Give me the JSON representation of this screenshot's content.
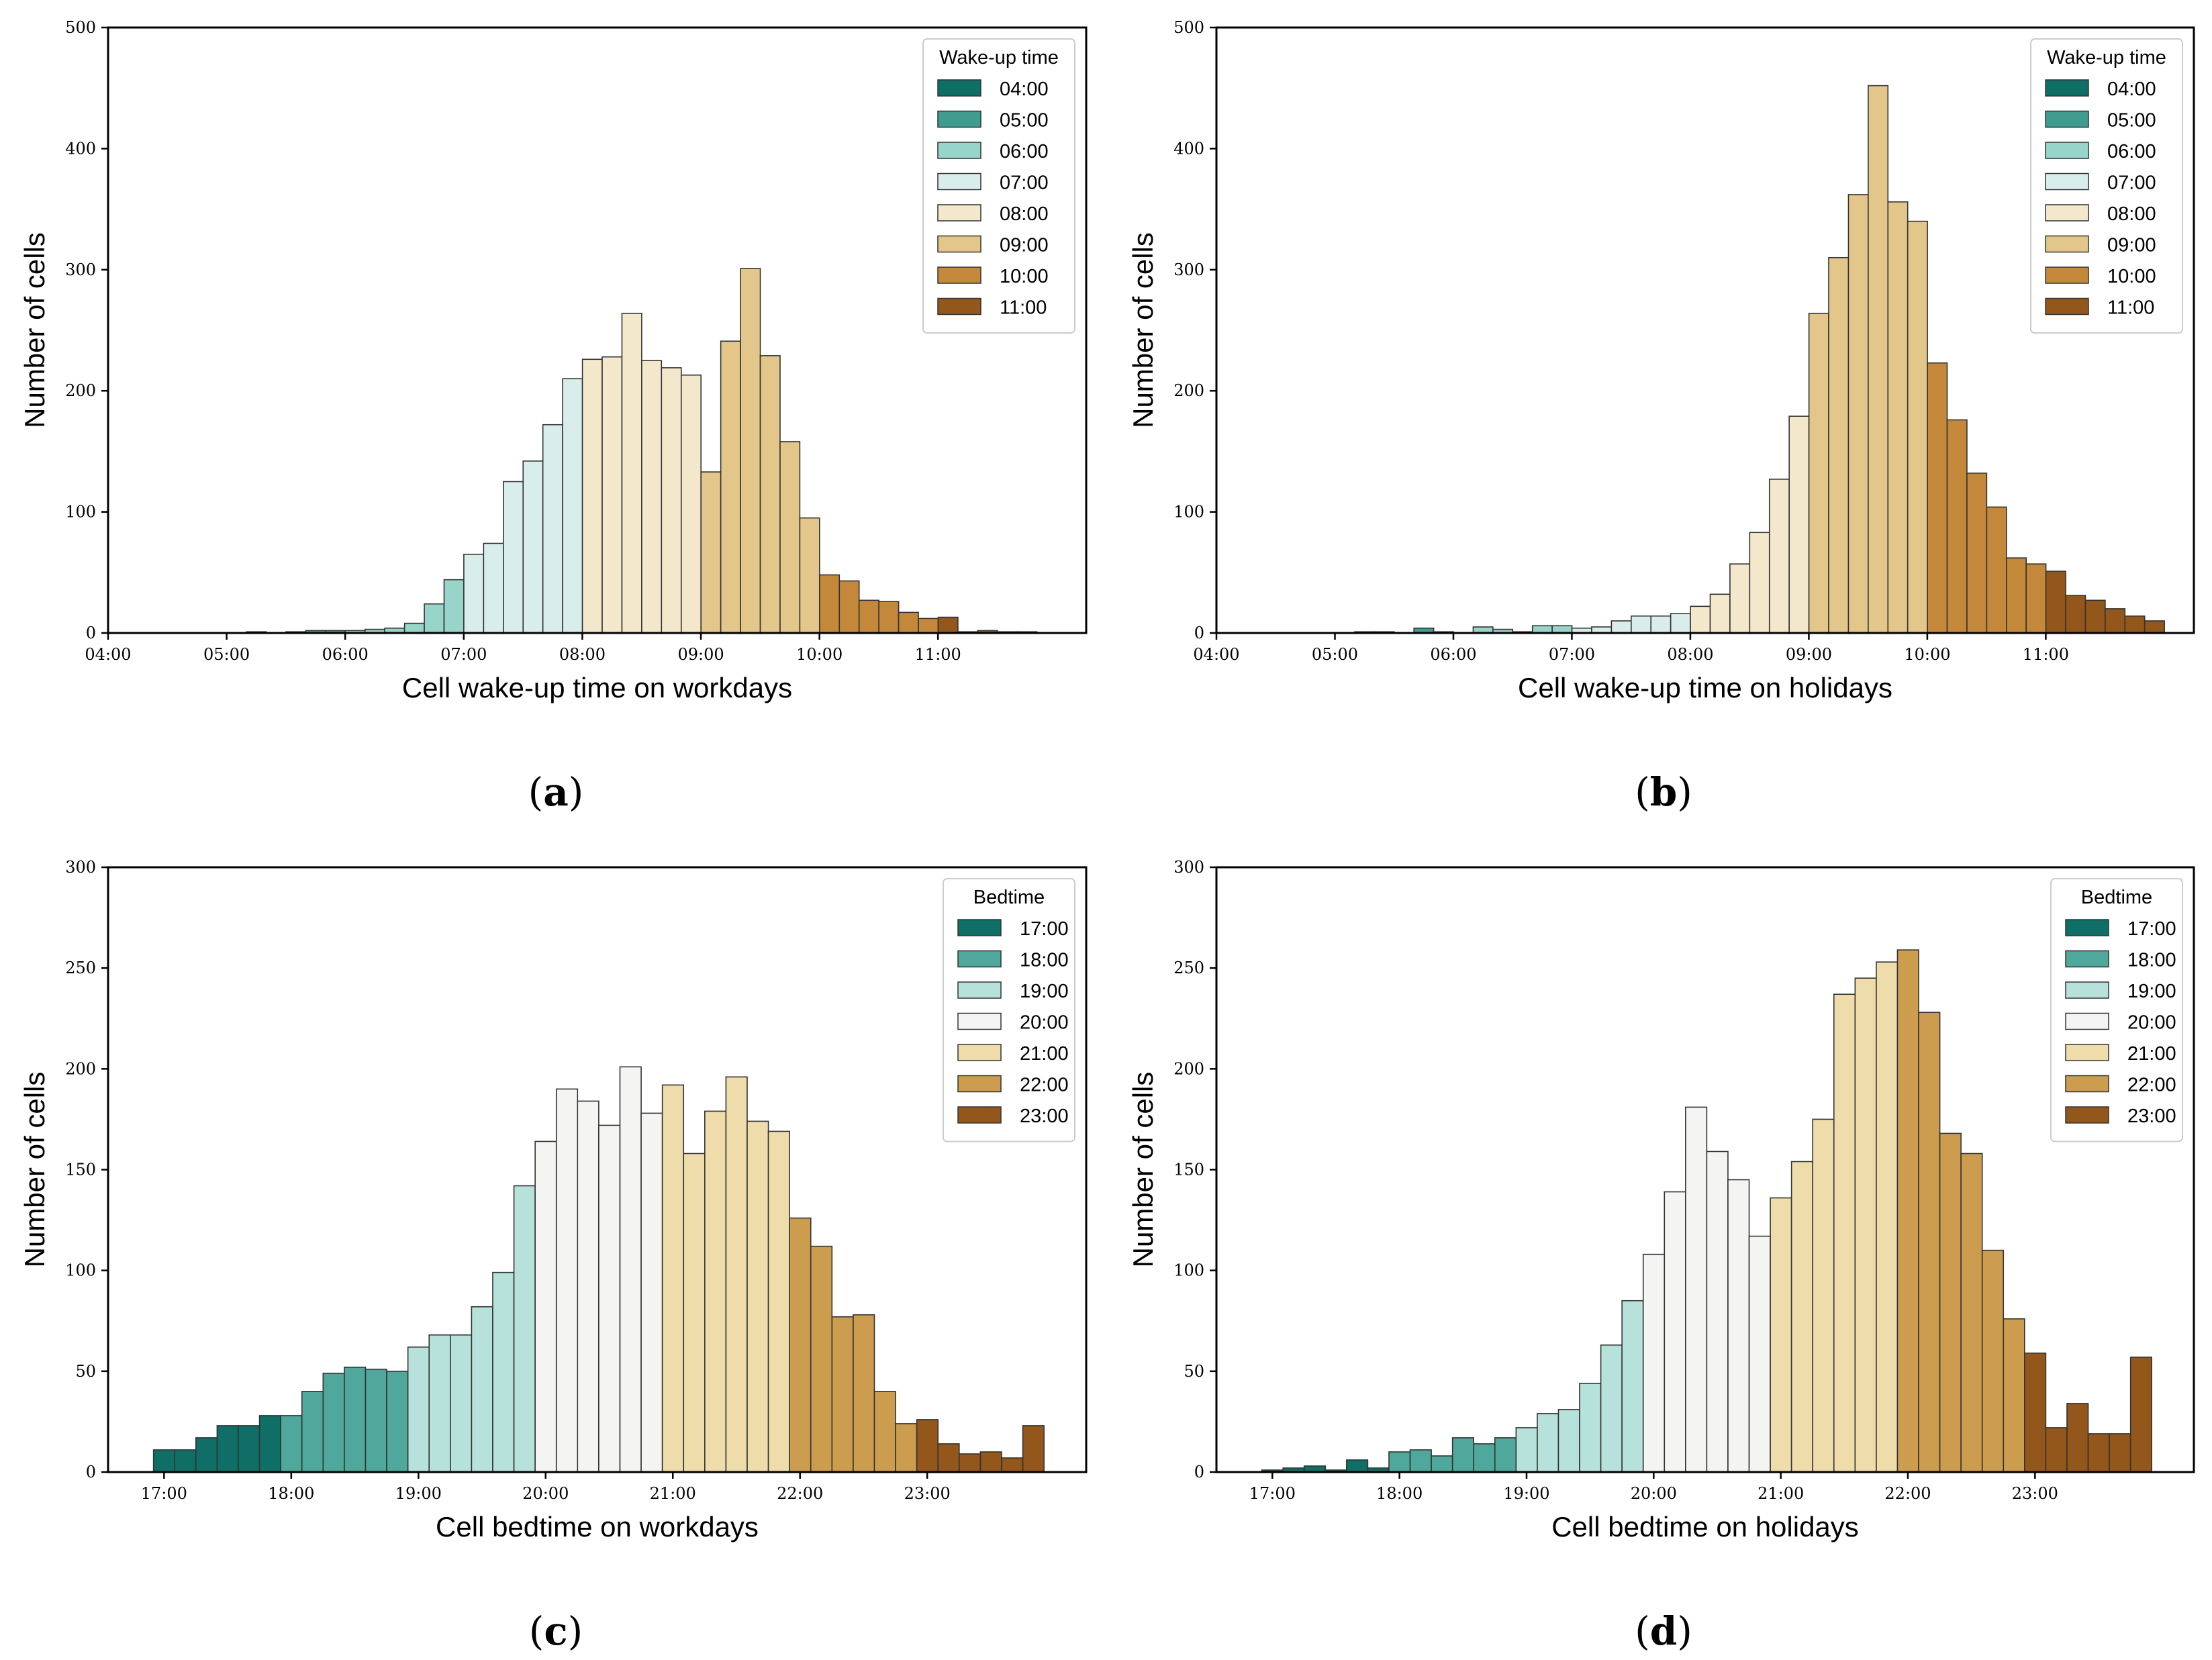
{
  "ylabel": "Number of cells",
  "chart_data": [
    {
      "type": "bar",
      "panel": "a",
      "caption": "a",
      "xlabel": "Cell wake-up time on workdays",
      "ylabel": "Number of cells",
      "ylim": [
        0,
        500
      ],
      "yticks": [
        0,
        100,
        200,
        300,
        400,
        500
      ],
      "xlim": [
        4.0,
        12.25
      ],
      "xticks": [
        4,
        5,
        6,
        7,
        8,
        9,
        10,
        11
      ],
      "xtick_labels": [
        "04:00",
        "05:00",
        "06:00",
        "07:00",
        "08:00",
        "09:00",
        "10:00",
        "11:00"
      ],
      "bin_start": 4.0,
      "bin_width": 0.1667,
      "legend_title": "Wake-up time",
      "legend_position": "top-right",
      "groups": [
        {
          "label": "04:00",
          "color": "#0f6e65"
        },
        {
          "label": "05:00",
          "color": "#3f9c8f"
        },
        {
          "label": "06:00",
          "color": "#97d4c9"
        },
        {
          "label": "07:00",
          "color": "#d9eeeb"
        },
        {
          "label": "08:00",
          "color": "#f4e8cc"
        },
        {
          "label": "09:00",
          "color": "#e2c68a"
        },
        {
          "label": "10:00",
          "color": "#c4883a"
        },
        {
          "label": "11:00",
          "color": "#93561b"
        }
      ],
      "bars": [
        {
          "v": 0,
          "g": 0
        },
        {
          "v": 0,
          "g": 0
        },
        {
          "v": 0,
          "g": 0
        },
        {
          "v": 0,
          "g": 0
        },
        {
          "v": 0,
          "g": 0
        },
        {
          "v": 0,
          "g": 0
        },
        {
          "v": 0,
          "g": 1
        },
        {
          "v": 1,
          "g": 1
        },
        {
          "v": 0,
          "g": 1
        },
        {
          "v": 1,
          "g": 1
        },
        {
          "v": 2,
          "g": 1
        },
        {
          "v": 2,
          "g": 1
        },
        {
          "v": 2,
          "g": 2
        },
        {
          "v": 3,
          "g": 2
        },
        {
          "v": 4,
          "g": 2
        },
        {
          "v": 8,
          "g": 2
        },
        {
          "v": 24,
          "g": 2
        },
        {
          "v": 44,
          "g": 2
        },
        {
          "v": 65,
          "g": 3
        },
        {
          "v": 74,
          "g": 3
        },
        {
          "v": 125,
          "g": 3
        },
        {
          "v": 142,
          "g": 3
        },
        {
          "v": 172,
          "g": 3
        },
        {
          "v": 210,
          "g": 3
        },
        {
          "v": 226,
          "g": 4
        },
        {
          "v": 228,
          "g": 4
        },
        {
          "v": 264,
          "g": 4
        },
        {
          "v": 225,
          "g": 4
        },
        {
          "v": 219,
          "g": 4
        },
        {
          "v": 213,
          "g": 4
        },
        {
          "v": 133,
          "g": 5
        },
        {
          "v": 241,
          "g": 5
        },
        {
          "v": 301,
          "g": 5
        },
        {
          "v": 229,
          "g": 5
        },
        {
          "v": 158,
          "g": 5
        },
        {
          "v": 95,
          "g": 5
        },
        {
          "v": 48,
          "g": 6
        },
        {
          "v": 43,
          "g": 6
        },
        {
          "v": 27,
          "g": 6
        },
        {
          "v": 26,
          "g": 6
        },
        {
          "v": 17,
          "g": 6
        },
        {
          "v": 12,
          "g": 6
        },
        {
          "v": 13,
          "g": 7
        },
        {
          "v": 1,
          "g": 7
        },
        {
          "v": 2,
          "g": 7
        },
        {
          "v": 1,
          "g": 7
        },
        {
          "v": 1,
          "g": 7
        },
        {
          "v": 0,
          "g": 7
        }
      ]
    },
    {
      "type": "bar",
      "panel": "b",
      "caption": "b",
      "xlabel": "Cell wake-up time on holidays",
      "ylabel": "Number of cells",
      "ylim": [
        0,
        500
      ],
      "yticks": [
        0,
        100,
        200,
        300,
        400,
        500
      ],
      "xlim": [
        4.0,
        12.25
      ],
      "xticks": [
        4,
        5,
        6,
        7,
        8,
        9,
        10,
        11
      ],
      "xtick_labels": [
        "04:00",
        "05:00",
        "06:00",
        "07:00",
        "08:00",
        "09:00",
        "10:00",
        "11:00"
      ],
      "bin_start": 4.0,
      "bin_width": 0.1667,
      "legend_title": "Wake-up time",
      "legend_position": "top-right",
      "groups": [
        {
          "label": "04:00",
          "color": "#0f6e65"
        },
        {
          "label": "05:00",
          "color": "#3f9c8f"
        },
        {
          "label": "06:00",
          "color": "#97d4c9"
        },
        {
          "label": "07:00",
          "color": "#d9eeeb"
        },
        {
          "label": "08:00",
          "color": "#f4e8cc"
        },
        {
          "label": "09:00",
          "color": "#e2c68a"
        },
        {
          "label": "10:00",
          "color": "#c4883a"
        },
        {
          "label": "11:00",
          "color": "#93561b"
        }
      ],
      "bars": [
        {
          "v": 0,
          "g": 0
        },
        {
          "v": 0,
          "g": 0
        },
        {
          "v": 0,
          "g": 0
        },
        {
          "v": 0,
          "g": 0
        },
        {
          "v": 0,
          "g": 0
        },
        {
          "v": 0,
          "g": 0
        },
        {
          "v": 0,
          "g": 1
        },
        {
          "v": 1,
          "g": 1
        },
        {
          "v": 1,
          "g": 1
        },
        {
          "v": 0,
          "g": 1
        },
        {
          "v": 4,
          "g": 1
        },
        {
          "v": 1,
          "g": 1
        },
        {
          "v": 0,
          "g": 2
        },
        {
          "v": 5,
          "g": 2
        },
        {
          "v": 3,
          "g": 2
        },
        {
          "v": 1,
          "g": 2
        },
        {
          "v": 6,
          "g": 2
        },
        {
          "v": 6,
          "g": 2
        },
        {
          "v": 4,
          "g": 3
        },
        {
          "v": 5,
          "g": 3
        },
        {
          "v": 10,
          "g": 3
        },
        {
          "v": 14,
          "g": 3
        },
        {
          "v": 14,
          "g": 3
        },
        {
          "v": 16,
          "g": 3
        },
        {
          "v": 22,
          "g": 4
        },
        {
          "v": 32,
          "g": 4
        },
        {
          "v": 57,
          "g": 4
        },
        {
          "v": 83,
          "g": 4
        },
        {
          "v": 127,
          "g": 4
        },
        {
          "v": 179,
          "g": 4
        },
        {
          "v": 264,
          "g": 5
        },
        {
          "v": 310,
          "g": 5
        },
        {
          "v": 362,
          "g": 5
        },
        {
          "v": 452,
          "g": 5
        },
        {
          "v": 356,
          "g": 5
        },
        {
          "v": 340,
          "g": 5
        },
        {
          "v": 223,
          "g": 6
        },
        {
          "v": 176,
          "g": 6
        },
        {
          "v": 132,
          "g": 6
        },
        {
          "v": 104,
          "g": 6
        },
        {
          "v": 62,
          "g": 6
        },
        {
          "v": 57,
          "g": 6
        },
        {
          "v": 51,
          "g": 7
        },
        {
          "v": 31,
          "g": 7
        },
        {
          "v": 27,
          "g": 7
        },
        {
          "v": 20,
          "g": 7
        },
        {
          "v": 14,
          "g": 7
        },
        {
          "v": 10,
          "g": 7
        }
      ]
    },
    {
      "type": "bar",
      "panel": "c",
      "caption": "c",
      "xlabel": "Cell bedtime on workdays",
      "ylabel": "Number of cells",
      "ylim": [
        0,
        300
      ],
      "yticks": [
        0,
        50,
        100,
        150,
        200,
        250,
        300
      ],
      "xlim": [
        16.56,
        24.25
      ],
      "xticks": [
        17,
        18,
        19,
        20,
        21,
        22,
        23
      ],
      "xtick_labels": [
        "17:00",
        "18:00",
        "19:00",
        "20:00",
        "21:00",
        "22:00",
        "23:00"
      ],
      "bin_start": 16.917,
      "bin_width": 0.1667,
      "legend_title": "Bedtime",
      "legend_position": "top-right",
      "groups": [
        {
          "label": "17:00",
          "color": "#0f6e65"
        },
        {
          "label": "18:00",
          "color": "#4fa89b"
        },
        {
          "label": "19:00",
          "color": "#b6e2db"
        },
        {
          "label": "20:00",
          "color": "#f4f4f2"
        },
        {
          "label": "21:00",
          "color": "#efdcab"
        },
        {
          "label": "22:00",
          "color": "#cc9c4f"
        },
        {
          "label": "23:00",
          "color": "#93561b"
        }
      ],
      "bars": [
        {
          "v": 11,
          "g": 0
        },
        {
          "v": 11,
          "g": 0
        },
        {
          "v": 17,
          "g": 0
        },
        {
          "v": 23,
          "g": 0
        },
        {
          "v": 23,
          "g": 0
        },
        {
          "v": 28,
          "g": 0
        },
        {
          "v": 28,
          "g": 1
        },
        {
          "v": 40,
          "g": 1
        },
        {
          "v": 49,
          "g": 1
        },
        {
          "v": 52,
          "g": 1
        },
        {
          "v": 51,
          "g": 1
        },
        {
          "v": 50,
          "g": 1
        },
        {
          "v": 62,
          "g": 2
        },
        {
          "v": 68,
          "g": 2
        },
        {
          "v": 68,
          "g": 2
        },
        {
          "v": 82,
          "g": 2
        },
        {
          "v": 99,
          "g": 2
        },
        {
          "v": 142,
          "g": 2
        },
        {
          "v": 164,
          "g": 3
        },
        {
          "v": 190,
          "g": 3
        },
        {
          "v": 184,
          "g": 3
        },
        {
          "v": 172,
          "g": 3
        },
        {
          "v": 201,
          "g": 3
        },
        {
          "v": 178,
          "g": 3
        },
        {
          "v": 192,
          "g": 4
        },
        {
          "v": 158,
          "g": 4
        },
        {
          "v": 179,
          "g": 4
        },
        {
          "v": 196,
          "g": 4
        },
        {
          "v": 174,
          "g": 4
        },
        {
          "v": 169,
          "g": 4
        },
        {
          "v": 126,
          "g": 5
        },
        {
          "v": 112,
          "g": 5
        },
        {
          "v": 77,
          "g": 5
        },
        {
          "v": 78,
          "g": 5
        },
        {
          "v": 40,
          "g": 5
        },
        {
          "v": 24,
          "g": 5
        },
        {
          "v": 26,
          "g": 6
        },
        {
          "v": 14,
          "g": 6
        },
        {
          "v": 9,
          "g": 6
        },
        {
          "v": 10,
          "g": 6
        },
        {
          "v": 7,
          "g": 6
        },
        {
          "v": 23,
          "g": 6
        }
      ]
    },
    {
      "type": "bar",
      "panel": "d",
      "caption": "d",
      "xlabel": "Cell bedtime on holidays",
      "ylabel": "Number of cells",
      "ylim": [
        0,
        300
      ],
      "yticks": [
        0,
        50,
        100,
        150,
        200,
        250,
        300
      ],
      "xlim": [
        16.56,
        24.25
      ],
      "xticks": [
        17,
        18,
        19,
        20,
        21,
        22,
        23
      ],
      "xtick_labels": [
        "17:00",
        "18:00",
        "19:00",
        "20:00",
        "21:00",
        "22:00",
        "23:00"
      ],
      "bin_start": 16.917,
      "bin_width": 0.1667,
      "legend_title": "Bedtime",
      "legend_position": "top-right",
      "groups": [
        {
          "label": "17:00",
          "color": "#0f6e65"
        },
        {
          "label": "18:00",
          "color": "#4fa89b"
        },
        {
          "label": "19:00",
          "color": "#b6e2db"
        },
        {
          "label": "20:00",
          "color": "#f4f4f2"
        },
        {
          "label": "21:00",
          "color": "#efdcab"
        },
        {
          "label": "22:00",
          "color": "#cc9c4f"
        },
        {
          "label": "23:00",
          "color": "#93561b"
        }
      ],
      "bars": [
        {
          "v": 1,
          "g": 0
        },
        {
          "v": 2,
          "g": 0
        },
        {
          "v": 3,
          "g": 0
        },
        {
          "v": 1,
          "g": 0
        },
        {
          "v": 6,
          "g": 0
        },
        {
          "v": 2,
          "g": 0
        },
        {
          "v": 10,
          "g": 1
        },
        {
          "v": 11,
          "g": 1
        },
        {
          "v": 8,
          "g": 1
        },
        {
          "v": 17,
          "g": 1
        },
        {
          "v": 14,
          "g": 1
        },
        {
          "v": 17,
          "g": 1
        },
        {
          "v": 22,
          "g": 2
        },
        {
          "v": 29,
          "g": 2
        },
        {
          "v": 31,
          "g": 2
        },
        {
          "v": 44,
          "g": 2
        },
        {
          "v": 63,
          "g": 2
        },
        {
          "v": 85,
          "g": 2
        },
        {
          "v": 108,
          "g": 3
        },
        {
          "v": 139,
          "g": 3
        },
        {
          "v": 181,
          "g": 3
        },
        {
          "v": 159,
          "g": 3
        },
        {
          "v": 145,
          "g": 3
        },
        {
          "v": 117,
          "g": 3
        },
        {
          "v": 136,
          "g": 4
        },
        {
          "v": 154,
          "g": 4
        },
        {
          "v": 175,
          "g": 4
        },
        {
          "v": 237,
          "g": 4
        },
        {
          "v": 245,
          "g": 4
        },
        {
          "v": 253,
          "g": 4
        },
        {
          "v": 259,
          "g": 5
        },
        {
          "v": 228,
          "g": 5
        },
        {
          "v": 168,
          "g": 5
        },
        {
          "v": 158,
          "g": 5
        },
        {
          "v": 110,
          "g": 5
        },
        {
          "v": 76,
          "g": 5
        },
        {
          "v": 59,
          "g": 6
        },
        {
          "v": 22,
          "g": 6
        },
        {
          "v": 34,
          "g": 6
        },
        {
          "v": 19,
          "g": 6
        },
        {
          "v": 19,
          "g": 6
        },
        {
          "v": 57,
          "g": 6
        }
      ]
    }
  ]
}
